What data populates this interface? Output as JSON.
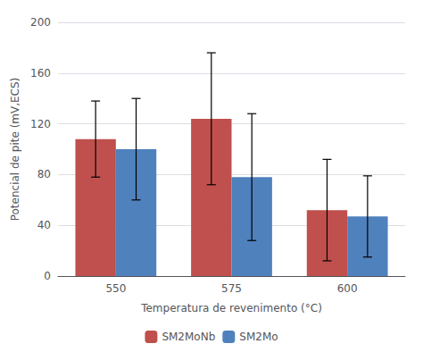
{
  "chart_data": {
    "type": "bar",
    "categories": [
      "550",
      "575",
      "600"
    ],
    "series": [
      {
        "name": "SM2MoNb",
        "color": "#c0504d",
        "values": [
          108,
          124,
          52
        ],
        "errors": [
          30,
          52,
          40
        ]
      },
      {
        "name": "SM2Mo",
        "color": "#4f81bd",
        "values": [
          100,
          78,
          47
        ],
        "errors": [
          40,
          50,
          32
        ]
      }
    ],
    "xlabel": "Temperatura de revenimento (°C)",
    "ylabel": "Potencial de pite (mV,ECS)",
    "ylim": [
      0,
      200
    ],
    "yticks": [
      0,
      40,
      80,
      120,
      160,
      200
    ],
    "grid": true,
    "legend": "bottom"
  }
}
